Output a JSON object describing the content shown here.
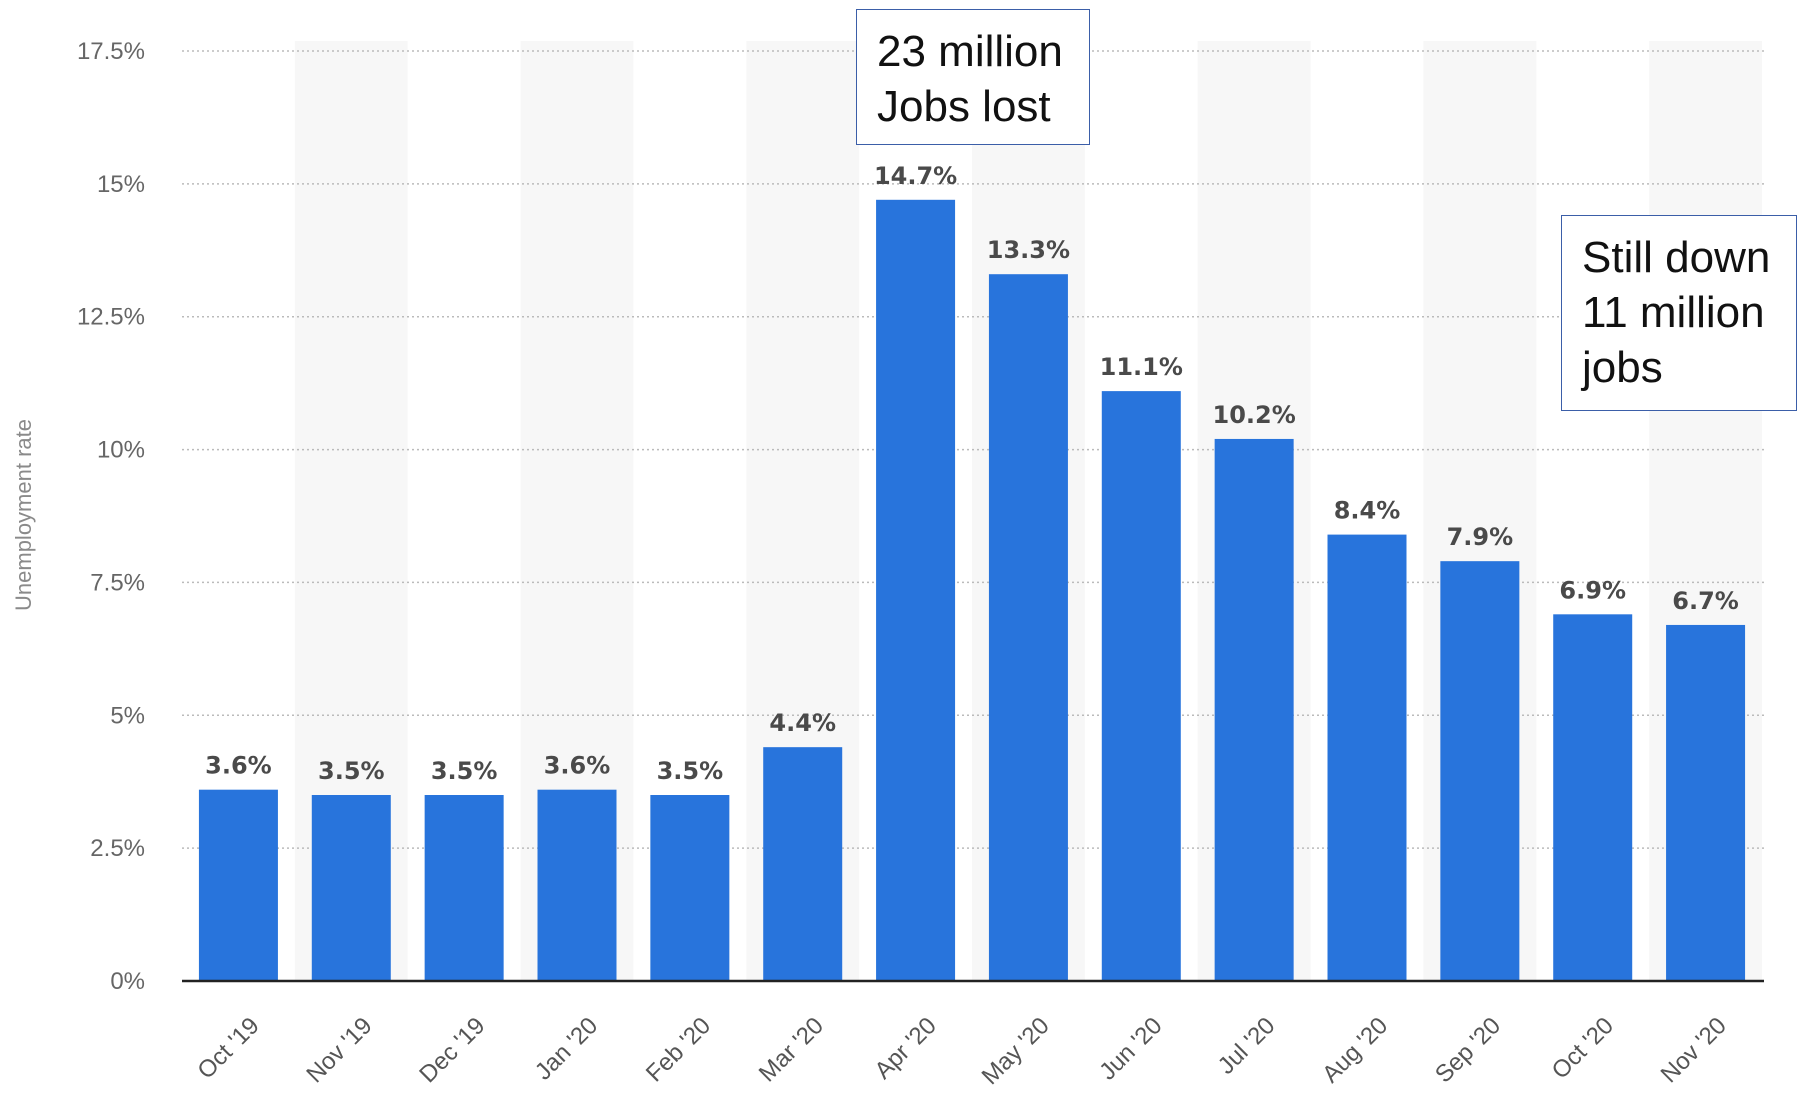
{
  "chart_data": {
    "type": "bar",
    "ylabel": "Unemployment rate",
    "xlabel": "",
    "ylim": [
      0,
      17.5
    ],
    "y_ticks": [
      "0%",
      "2.5%",
      "5%",
      "7.5%",
      "10%",
      "12.5%",
      "15%",
      "17.5%"
    ],
    "y_tick_values": [
      0,
      2.5,
      5,
      7.5,
      10,
      12.5,
      15,
      17.5
    ],
    "categories": [
      "Oct '19",
      "Nov '19",
      "Dec '19",
      "Jan '20",
      "Feb '20",
      "Mar '20",
      "Apr '20",
      "May '20",
      "Jun '20",
      "Jul '20",
      "Aug '20",
      "Sep '20",
      "Oct '20",
      "Nov '20"
    ],
    "values": [
      3.6,
      3.5,
      3.5,
      3.6,
      3.5,
      4.4,
      14.7,
      13.3,
      11.1,
      10.2,
      8.4,
      7.9,
      6.9,
      6.7
    ],
    "data_labels": [
      "3.6%",
      "3.5%",
      "3.5%",
      "3.6%",
      "3.5%",
      "4.4%",
      "14.7%",
      "13.3%",
      "11.1%",
      "10.2%",
      "8.4%",
      "7.9%",
      "6.9%",
      "6.7%"
    ],
    "bar_color": "#2874dc",
    "grid": true,
    "legend": "none"
  },
  "annotations": {
    "jobs_lost": {
      "lines": [
        "23 million",
        "Jobs lost"
      ]
    },
    "still_down": {
      "lines": [
        "Still down",
        "11 million",
        "jobs"
      ]
    }
  },
  "colors": {
    "bar": "#2874dc",
    "band": "#f7f7f7",
    "grid": "#bbbbbb",
    "axis": "#222222",
    "box_border": "#3b5ea8"
  }
}
